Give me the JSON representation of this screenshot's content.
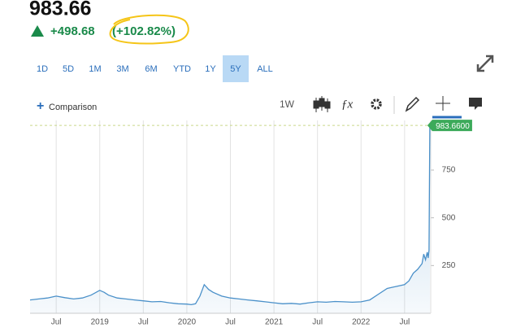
{
  "header": {
    "price": "983.66",
    "change": "+498.68",
    "change_percent": "(+102.82%)"
  },
  "toolbar": {
    "ranges": [
      "1D",
      "5D",
      "1M",
      "3M",
      "6M",
      "YTD",
      "1Y",
      "5Y",
      "ALL"
    ],
    "selected_range_index": 7,
    "comparison": "Comparison",
    "interval": "1W"
  },
  "chart_data": {
    "type": "line",
    "color": "#4a90c9",
    "x": [
      2018.2,
      2018.3,
      2018.4,
      2018.5,
      2018.6,
      2018.7,
      2018.8,
      2018.9,
      2019.0,
      2019.05,
      2019.1,
      2019.2,
      2019.3,
      2019.4,
      2019.5,
      2019.6,
      2019.7,
      2019.8,
      2019.9,
      2020.0,
      2020.05,
      2020.1,
      2020.15,
      2020.2,
      2020.25,
      2020.3,
      2020.4,
      2020.5,
      2020.6,
      2020.7,
      2020.8,
      2020.9,
      2021.0,
      2021.1,
      2021.2,
      2021.3,
      2021.4,
      2021.5,
      2021.6,
      2021.7,
      2021.8,
      2021.9,
      2022.0,
      2022.1,
      2022.2,
      2022.3,
      2022.35,
      2022.4,
      2022.5,
      2022.55,
      2022.6,
      2022.65,
      2022.7,
      2022.72,
      2022.74,
      2022.76,
      2022.77,
      2022.78,
      2022.79
    ],
    "values": [
      70,
      75,
      80,
      90,
      82,
      75,
      80,
      95,
      120,
      110,
      95,
      80,
      75,
      70,
      65,
      60,
      62,
      55,
      50,
      48,
      45,
      50,
      90,
      150,
      125,
      110,
      90,
      80,
      75,
      70,
      65,
      60,
      55,
      50,
      52,
      48,
      55,
      60,
      58,
      62,
      60,
      58,
      60,
      70,
      100,
      130,
      135,
      140,
      150,
      170,
      210,
      230,
      260,
      310,
      280,
      320,
      290,
      330,
      983.66
    ],
    "last_price_label": "983.6600",
    "xlim": [
      2018.2,
      2022.8
    ],
    "xticks": [
      {
        "value": 2018.5,
        "label": "Jul"
      },
      2019,
      {
        "value": 2019.5,
        "label": "Jul"
      },
      2020,
      {
        "value": 2020.5,
        "label": "Jul"
      },
      2021,
      {
        "value": 2021.5,
        "label": "Jul"
      },
      2022,
      {
        "value": 2022.5,
        "label": "Jul"
      }
    ],
    "ylim": [
      0,
      1010
    ],
    "yticks": [
      250,
      500,
      750
    ],
    "grid": true
  }
}
